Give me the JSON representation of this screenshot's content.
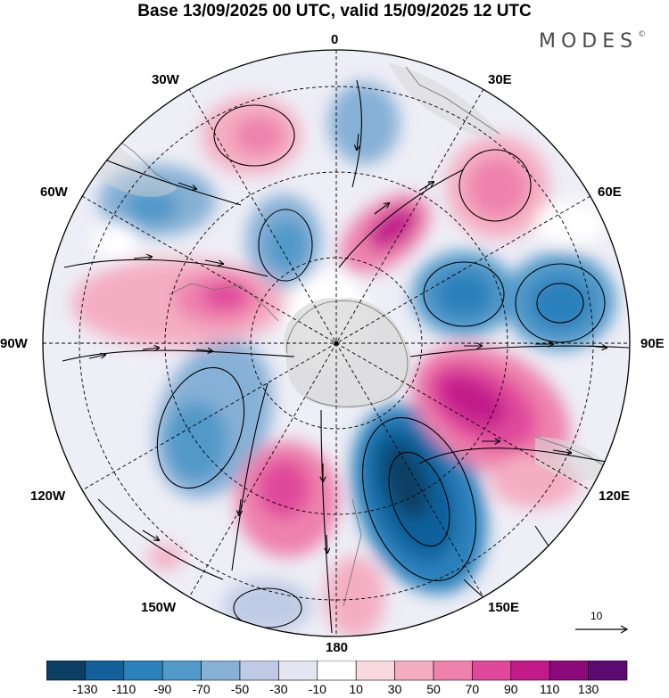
{
  "title": "Base 13/09/2025 00 UTC, valid 15/09/2025 12 UTC",
  "brand": "MODES",
  "brand_mark": "©",
  "longitude_labels": {
    "north": "0",
    "ne": "30E",
    "ene": "60E",
    "east": "90E",
    "ese": "120E",
    "se": "150E",
    "south": "180",
    "sw": "150W",
    "wsw": "120W",
    "west": "90W",
    "wnw": "60W",
    "nw": "30W"
  },
  "reference_vector": "10",
  "colorbar": {
    "ticks": [
      "-130",
      "-110",
      "-90",
      "-70",
      "-50",
      "-30",
      "-10",
      "10",
      "30",
      "50",
      "70",
      "90",
      "110",
      "130"
    ],
    "colors": [
      "#0a3f63",
      "#11609a",
      "#2c80bb",
      "#5199c9",
      "#86b0d6",
      "#bfcbe5",
      "#e5e5f2",
      "#ffffff",
      "#f9d8de",
      "#f4aec3",
      "#ee82ad",
      "#e0489b",
      "#c21a8b",
      "#8a0a7c",
      "#5a0a70"
    ]
  }
}
